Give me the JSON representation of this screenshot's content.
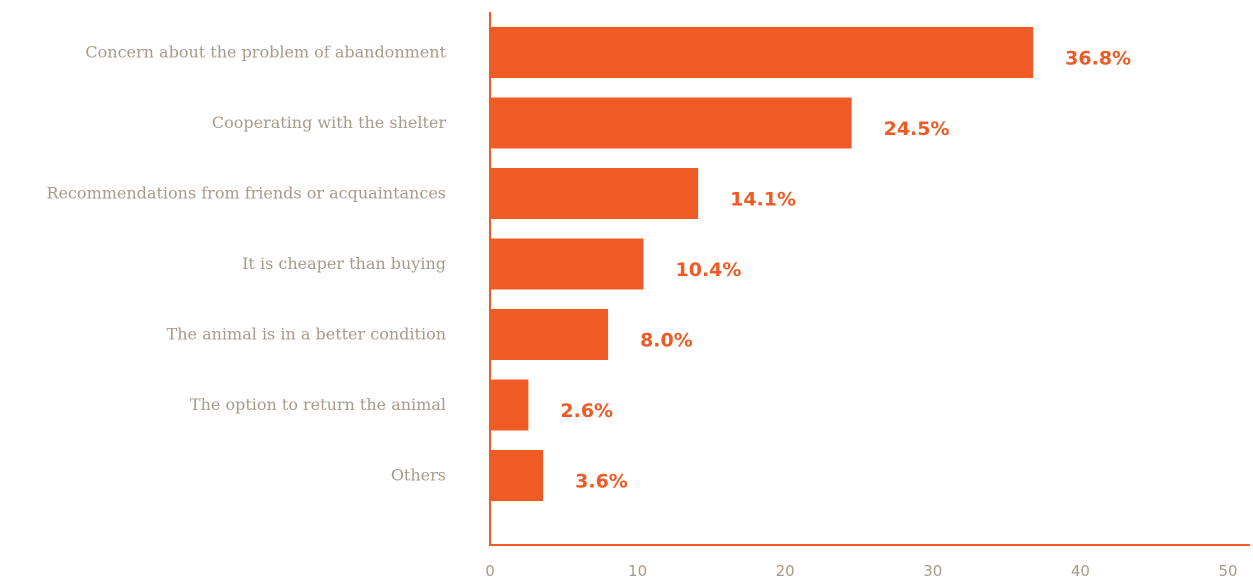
{
  "colors": {
    "bar": "#f05a24",
    "label": "#a89a8a",
    "axis": "#f05a24"
  },
  "chart_data": {
    "type": "bar",
    "orientation": "horizontal",
    "title": "",
    "xlabel": "",
    "ylabel": "",
    "xlim": [
      0,
      50
    ],
    "ticks": [
      0,
      10,
      20,
      30,
      40,
      50
    ],
    "grid": false,
    "categories": [
      "Concern about the problem of abandonment",
      "Cooperating with the shelter",
      "Recommendations from friends or acquaintances",
      "It is cheaper than buying",
      "The animal is in a better condition",
      "The option to return the animal",
      "Others"
    ],
    "values": [
      36.8,
      24.5,
      14.1,
      10.4,
      8.0,
      2.6,
      3.6
    ],
    "value_labels": [
      "36.8%",
      "24.5%",
      "14.1%",
      "10.4%",
      "8.0%",
      "2.6%",
      "3.6%"
    ]
  }
}
